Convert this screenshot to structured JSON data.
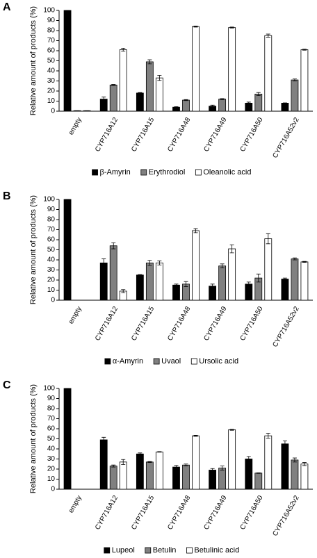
{
  "chart_data": [
    {
      "type": "bar",
      "panel": "A",
      "ylabel": "Relative amount of products (%)",
      "categories": [
        "empty",
        "CYP716A12",
        "CYP716A15",
        "CYP716A48",
        "CYP716A49",
        "CYP716A50",
        "CYP716A52v2"
      ],
      "series": [
        {
          "name": "β-Amyrin",
          "color": "#000000",
          "values": [
            100,
            12,
            18,
            4,
            5,
            8,
            8
          ],
          "errors": [
            0,
            2,
            0.5,
            0.5,
            1,
            1,
            0.3
          ]
        },
        {
          "name": "Erythrodiol",
          "color": "#808080",
          "values": [
            0.5,
            26,
            49,
            11,
            12,
            17,
            31
          ],
          "errors": [
            0,
            0.5,
            2,
            0.5,
            0.5,
            1.5,
            1
          ]
        },
        {
          "name": "Oleanolic acid",
          "color": "#ffffff",
          "values": [
            0.5,
            61,
            33,
            84,
            83,
            75,
            61
          ],
          "errors": [
            0,
            1.5,
            2.5,
            0.5,
            0.5,
            1.5,
            0.5
          ]
        }
      ],
      "ylim": [
        0,
        100
      ],
      "yticks": [
        0,
        10,
        20,
        30,
        40,
        50,
        60,
        70,
        80,
        90,
        100
      ],
      "grid": false,
      "legend": "bottom"
    },
    {
      "type": "bar",
      "panel": "B",
      "ylabel": "Relative amount of products (%)",
      "categories": [
        "empty",
        "CYP716A12",
        "CYP716A15",
        "CYP716A48",
        "CYP716A49",
        "CYP716A50",
        "CYP716A52v2"
      ],
      "series": [
        {
          "name": "α-Amyrin",
          "color": "#000000",
          "values": [
            100,
            37,
            25,
            15,
            14,
            16,
            21
          ],
          "errors": [
            0,
            4,
            0.5,
            1,
            2,
            2,
            1
          ]
        },
        {
          "name": "Uvaol",
          "color": "#808080",
          "values": [
            0,
            54,
            37,
            16,
            34,
            22,
            41
          ],
          "errors": [
            0,
            3,
            2.5,
            2.5,
            2,
            4,
            1
          ]
        },
        {
          "name": "Ursolic acid",
          "color": "#ffffff",
          "values": [
            0,
            9,
            37,
            69,
            51,
            61,
            38
          ],
          "errors": [
            0,
            1.5,
            2,
            2,
            4,
            5,
            0.5
          ]
        }
      ],
      "ylim": [
        0,
        100
      ],
      "yticks": [
        0,
        10,
        20,
        30,
        40,
        50,
        60,
        70,
        80,
        90,
        100
      ],
      "grid": false,
      "legend": "bottom"
    },
    {
      "type": "bar",
      "panel": "C",
      "ylabel": "Relative amount of products (%)",
      "categories": [
        "empty",
        "CYP716A12",
        "CYP716A15",
        "CYP716A48",
        "CYP716A49",
        "CYP716A50",
        "CYP716A52v2"
      ],
      "series": [
        {
          "name": "Lupeol",
          "color": "#000000",
          "values": [
            100,
            49,
            35,
            22,
            19,
            30,
            45
          ],
          "errors": [
            0,
            2.5,
            1,
            1.5,
            1.5,
            2.5,
            3
          ]
        },
        {
          "name": "Betulin",
          "color": "#808080",
          "values": [
            0,
            23,
            27,
            24,
            21,
            16,
            29
          ],
          "errors": [
            0,
            1,
            0.5,
            1,
            2,
            0.3,
            2
          ]
        },
        {
          "name": "Betulinic acid",
          "color": "#ffffff",
          "values": [
            0,
            27,
            37,
            53,
            59,
            53,
            25
          ],
          "errors": [
            0,
            2.5,
            0.3,
            0.5,
            0.5,
            2.5,
            1.5
          ]
        }
      ],
      "ylim": [
        0,
        100
      ],
      "yticks": [
        0,
        10,
        20,
        30,
        40,
        50,
        60,
        70,
        80,
        90,
        100
      ],
      "grid": false,
      "legend": "bottom"
    }
  ]
}
